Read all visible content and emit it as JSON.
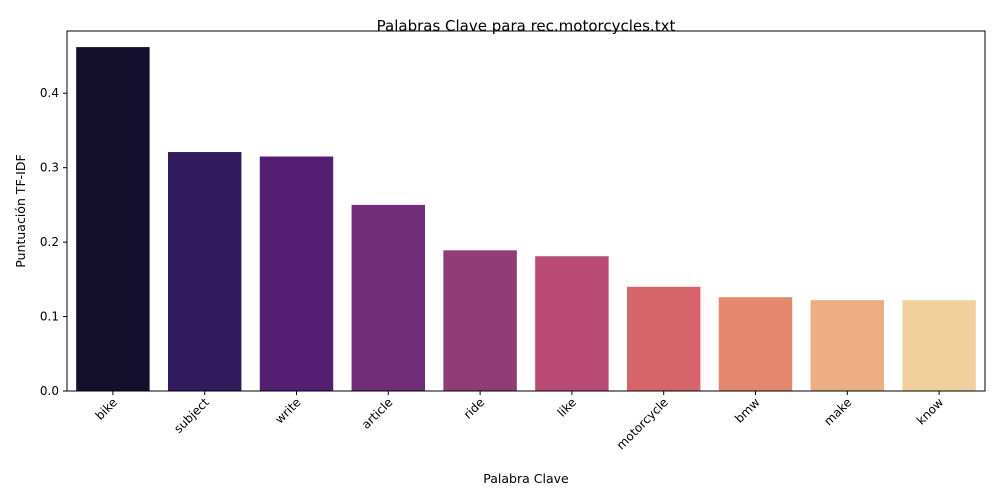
{
  "chart_data": {
    "type": "bar",
    "title": "Palabras Clave para rec.motorcycles.txt",
    "xlabel": "Palabra Clave",
    "ylabel": "Puntuación TF-IDF",
    "ylim": [
      0,
      0.4836
    ],
    "yticks": [
      "0.0",
      "0.1",
      "0.2",
      "0.3",
      "0.4"
    ],
    "ytick_values": [
      0,
      0.1,
      0.2,
      0.3,
      0.4
    ],
    "categories": [
      "bike",
      "subject",
      "write",
      "article",
      "ride",
      "like",
      "motorcycle",
      "bmw",
      "make",
      "know"
    ],
    "values": [
      0.462,
      0.321,
      0.315,
      0.25,
      0.189,
      0.181,
      0.14,
      0.126,
      0.122,
      0.122
    ],
    "colors": [
      "#150f2e",
      "#311a5d",
      "#541f72",
      "#712d77",
      "#903c77",
      "#b84a73",
      "#d8646b",
      "#e5876d",
      "#edae83",
      "#f1d09e"
    ],
    "grid": false,
    "legend": "none"
  }
}
